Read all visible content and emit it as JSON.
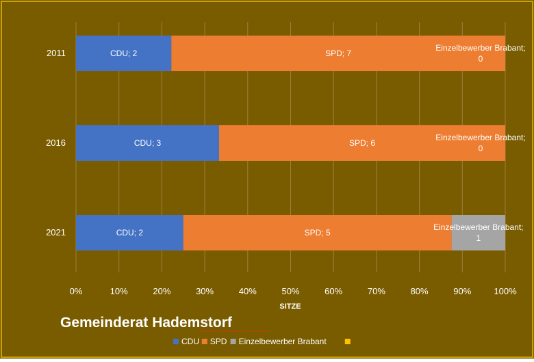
{
  "chart_data": {
    "type": "bar",
    "orientation": "horizontal",
    "stacking": "percent",
    "title": "Gemeinderat Hademstorf",
    "xlabel": "SITZE",
    "ylabel": "",
    "xlim": [
      0,
      100
    ],
    "x_ticks": [
      "0%",
      "10%",
      "20%",
      "30%",
      "40%",
      "50%",
      "60%",
      "70%",
      "80%",
      "90%",
      "100%"
    ],
    "grid": true,
    "legend_position": "bottom",
    "categories": [
      "2011",
      "2016",
      "2021"
    ],
    "series": [
      {
        "name": "CDU",
        "color": "#4472C4",
        "values": [
          2,
          3,
          2
        ],
        "labels": [
          "CDU; 2",
          "CDU; 3",
          "CDU; 2"
        ]
      },
      {
        "name": "SPD",
        "color": "#ED7D31",
        "values": [
          7,
          6,
          5
        ],
        "labels": [
          "SPD; 7",
          "SPD; 6",
          "SPD; 5"
        ]
      },
      {
        "name": "Einzelbewerber Brabant",
        "color": "#A5A5A5",
        "values": [
          0,
          0,
          1
        ],
        "labels": [
          "Einzelbewerber Brabant;\n0",
          "Einzelbewerber Brabant;\n0",
          "Einzelbewerber Brabant;\n1"
        ]
      },
      {
        "name": "",
        "color": "#FFC000",
        "values": [
          0,
          0,
          0
        ],
        "labels": [
          "",
          "",
          ""
        ]
      }
    ]
  },
  "colors": {
    "background": "#7A5C00",
    "border": "#C9A100",
    "gridline": "#9A8040"
  }
}
